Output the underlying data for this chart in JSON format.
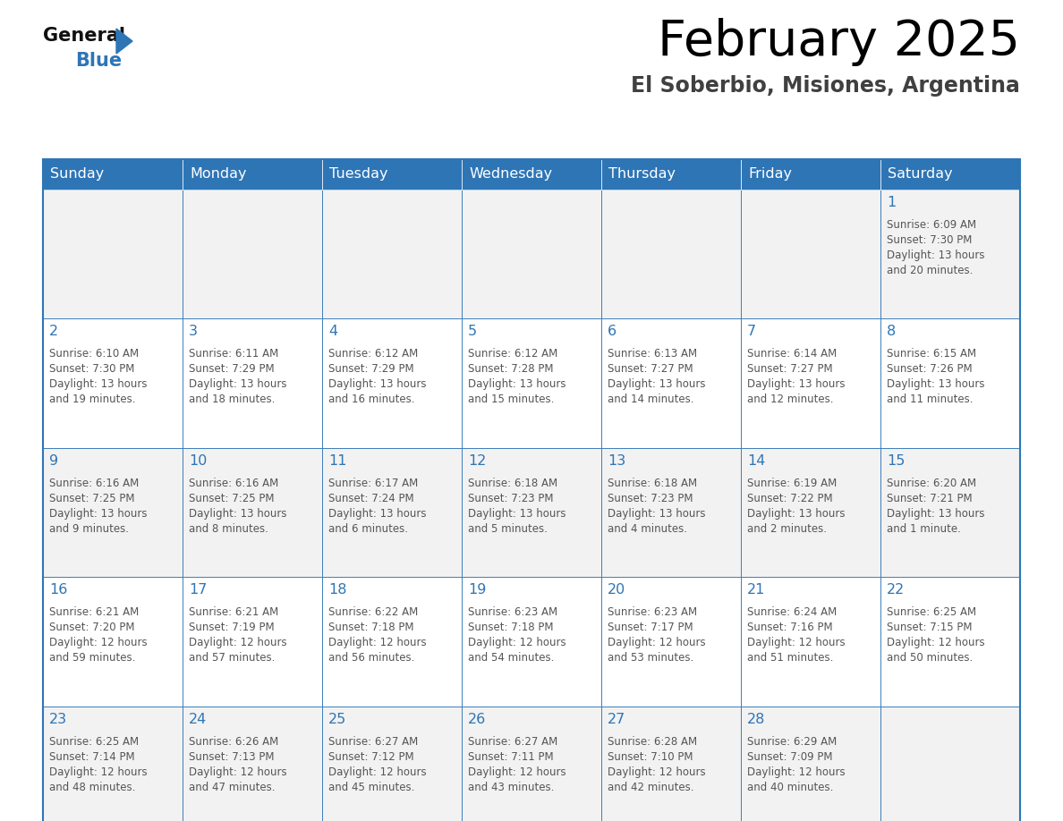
{
  "title": "February 2025",
  "subtitle": "El Soberbio, Misiones, Argentina",
  "days_of_week": [
    "Sunday",
    "Monday",
    "Tuesday",
    "Wednesday",
    "Thursday",
    "Friday",
    "Saturday"
  ],
  "header_bg": "#2E75B6",
  "header_text": "#FFFFFF",
  "cell_bg_row0": "#F2F2F2",
  "cell_bg_row1": "#FFFFFF",
  "border_color": "#2E75B6",
  "day_number_color": "#2E75B6",
  "text_color": "#555555",
  "logo_general_color": "#111111",
  "logo_blue_color": "#2E75B6",
  "logo_triangle_color": "#2E75B6",
  "calendar_data": [
    [
      null,
      null,
      null,
      null,
      null,
      null,
      {
        "day": 1,
        "sunrise": "6:09 AM",
        "sunset": "7:30 PM",
        "daylight": "13 hours and 20 minutes"
      }
    ],
    [
      {
        "day": 2,
        "sunrise": "6:10 AM",
        "sunset": "7:30 PM",
        "daylight": "13 hours and 19 minutes"
      },
      {
        "day": 3,
        "sunrise": "6:11 AM",
        "sunset": "7:29 PM",
        "daylight": "13 hours and 18 minutes"
      },
      {
        "day": 4,
        "sunrise": "6:12 AM",
        "sunset": "7:29 PM",
        "daylight": "13 hours and 16 minutes"
      },
      {
        "day": 5,
        "sunrise": "6:12 AM",
        "sunset": "7:28 PM",
        "daylight": "13 hours and 15 minutes"
      },
      {
        "day": 6,
        "sunrise": "6:13 AM",
        "sunset": "7:27 PM",
        "daylight": "13 hours and 14 minutes"
      },
      {
        "day": 7,
        "sunrise": "6:14 AM",
        "sunset": "7:27 PM",
        "daylight": "13 hours and 12 minutes"
      },
      {
        "day": 8,
        "sunrise": "6:15 AM",
        "sunset": "7:26 PM",
        "daylight": "13 hours and 11 minutes"
      }
    ],
    [
      {
        "day": 9,
        "sunrise": "6:16 AM",
        "sunset": "7:25 PM",
        "daylight": "13 hours and 9 minutes"
      },
      {
        "day": 10,
        "sunrise": "6:16 AM",
        "sunset": "7:25 PM",
        "daylight": "13 hours and 8 minutes"
      },
      {
        "day": 11,
        "sunrise": "6:17 AM",
        "sunset": "7:24 PM",
        "daylight": "13 hours and 6 minutes"
      },
      {
        "day": 12,
        "sunrise": "6:18 AM",
        "sunset": "7:23 PM",
        "daylight": "13 hours and 5 minutes"
      },
      {
        "day": 13,
        "sunrise": "6:18 AM",
        "sunset": "7:23 PM",
        "daylight": "13 hours and 4 minutes"
      },
      {
        "day": 14,
        "sunrise": "6:19 AM",
        "sunset": "7:22 PM",
        "daylight": "13 hours and 2 minutes"
      },
      {
        "day": 15,
        "sunrise": "6:20 AM",
        "sunset": "7:21 PM",
        "daylight": "13 hours and 1 minute"
      }
    ],
    [
      {
        "day": 16,
        "sunrise": "6:21 AM",
        "sunset": "7:20 PM",
        "daylight": "12 hours and 59 minutes"
      },
      {
        "day": 17,
        "sunrise": "6:21 AM",
        "sunset": "7:19 PM",
        "daylight": "12 hours and 57 minutes"
      },
      {
        "day": 18,
        "sunrise": "6:22 AM",
        "sunset": "7:18 PM",
        "daylight": "12 hours and 56 minutes"
      },
      {
        "day": 19,
        "sunrise": "6:23 AM",
        "sunset": "7:18 PM",
        "daylight": "12 hours and 54 minutes"
      },
      {
        "day": 20,
        "sunrise": "6:23 AM",
        "sunset": "7:17 PM",
        "daylight": "12 hours and 53 minutes"
      },
      {
        "day": 21,
        "sunrise": "6:24 AM",
        "sunset": "7:16 PM",
        "daylight": "12 hours and 51 minutes"
      },
      {
        "day": 22,
        "sunrise": "6:25 AM",
        "sunset": "7:15 PM",
        "daylight": "12 hours and 50 minutes"
      }
    ],
    [
      {
        "day": 23,
        "sunrise": "6:25 AM",
        "sunset": "7:14 PM",
        "daylight": "12 hours and 48 minutes"
      },
      {
        "day": 24,
        "sunrise": "6:26 AM",
        "sunset": "7:13 PM",
        "daylight": "12 hours and 47 minutes"
      },
      {
        "day": 25,
        "sunrise": "6:27 AM",
        "sunset": "7:12 PM",
        "daylight": "12 hours and 45 minutes"
      },
      {
        "day": 26,
        "sunrise": "6:27 AM",
        "sunset": "7:11 PM",
        "daylight": "12 hours and 43 minutes"
      },
      {
        "day": 27,
        "sunrise": "6:28 AM",
        "sunset": "7:10 PM",
        "daylight": "12 hours and 42 minutes"
      },
      {
        "day": 28,
        "sunrise": "6:29 AM",
        "sunset": "7:09 PM",
        "daylight": "12 hours and 40 minutes"
      },
      null
    ]
  ]
}
